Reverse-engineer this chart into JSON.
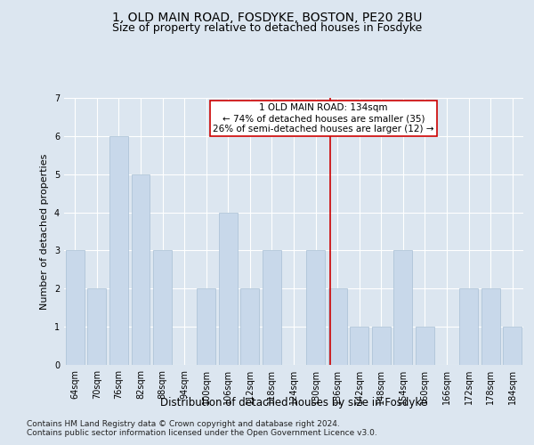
{
  "title1": "1, OLD MAIN ROAD, FOSDYKE, BOSTON, PE20 2BU",
  "title2": "Size of property relative to detached houses in Fosdyke",
  "xlabel": "Distribution of detached houses by size in Fosdyke",
  "ylabel": "Number of detached properties",
  "categories": [
    "64sqm",
    "70sqm",
    "76sqm",
    "82sqm",
    "88sqm",
    "94sqm",
    "100sqm",
    "106sqm",
    "112sqm",
    "118sqm",
    "124sqm",
    "130sqm",
    "136sqm",
    "142sqm",
    "148sqm",
    "154sqm",
    "160sqm",
    "166sqm",
    "172sqm",
    "178sqm",
    "184sqm"
  ],
  "values": [
    3,
    2,
    6,
    5,
    3,
    0,
    2,
    4,
    2,
    3,
    0,
    3,
    2,
    1,
    1,
    3,
    1,
    0,
    2,
    2,
    1
  ],
  "bar_color": "#c8d8ea",
  "bar_edgecolor": "#a8bfd4",
  "vline_color": "#cc0000",
  "annotation_text": "1 OLD MAIN ROAD: 134sqm\n← 74% of detached houses are smaller (35)\n26% of semi-detached houses are larger (12) →",
  "annotation_box_edgecolor": "#cc0000",
  "annotation_box_facecolor": "#ffffff",
  "ylim": [
    0,
    7
  ],
  "yticks": [
    0,
    1,
    2,
    3,
    4,
    5,
    6,
    7
  ],
  "background_color": "#dce6f0",
  "grid_color": "#ffffff",
  "footer1": "Contains HM Land Registry data © Crown copyright and database right 2024.",
  "footer2": "Contains public sector information licensed under the Open Government Licence v3.0.",
  "title1_fontsize": 10,
  "title2_fontsize": 9,
  "xlabel_fontsize": 8.5,
  "ylabel_fontsize": 8,
  "tick_fontsize": 7,
  "annotation_fontsize": 7.5,
  "footer_fontsize": 6.5
}
